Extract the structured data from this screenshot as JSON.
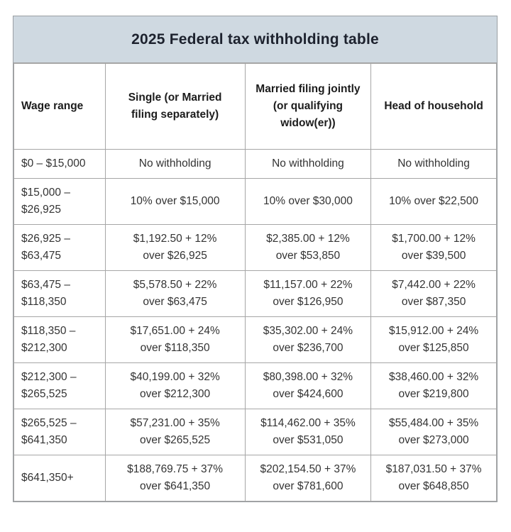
{
  "page": {
    "background": "#ffffff"
  },
  "style": {
    "title_band_bg": "#cfd9e1",
    "border_color": "#a6a6a6",
    "title_text_color": "#1d222e",
    "header_text_color": "#1c1c1c",
    "cell_text_color": "#333333"
  },
  "chart_data": {
    "type": "table",
    "title": "2025 Federal tax withholding table",
    "columns": [
      [
        "Wage range"
      ],
      [
        "Single (or Married",
        "filing separately)"
      ],
      [
        "Married filing jointly",
        "(or qualifying",
        "widow(er))"
      ],
      [
        "Head of household"
      ]
    ],
    "rows": [
      [
        [
          "$0 – $15,000"
        ],
        [
          "No withholding"
        ],
        [
          "No withholding"
        ],
        [
          "No withholding"
        ]
      ],
      [
        [
          "$15,000 –",
          "$26,925"
        ],
        [
          "10% over $15,000"
        ],
        [
          "10% over $30,000"
        ],
        [
          "10% over $22,500"
        ]
      ],
      [
        [
          "$26,925 –",
          "$63,475"
        ],
        [
          "$1,192.50 + 12%",
          "over $26,925"
        ],
        [
          "$2,385.00 + 12%",
          "over $53,850"
        ],
        [
          "$1,700.00 + 12%",
          "over $39,500"
        ]
      ],
      [
        [
          "$63,475 –",
          "$118,350"
        ],
        [
          "$5,578.50 + 22%",
          "over $63,475"
        ],
        [
          "$11,157.00 + 22%",
          "over $126,950"
        ],
        [
          "$7,442.00 + 22%",
          "over $87,350"
        ]
      ],
      [
        [
          "$118,350 –",
          "$212,300"
        ],
        [
          "$17,651.00 + 24%",
          "over $118,350"
        ],
        [
          "$35,302.00 + 24%",
          "over $236,700"
        ],
        [
          "$15,912.00 + 24%",
          "over $125,850"
        ]
      ],
      [
        [
          "$212,300 –",
          "$265,525"
        ],
        [
          "$40,199.00 + 32%",
          "over $212,300"
        ],
        [
          "$80,398.00 + 32%",
          "over $424,600"
        ],
        [
          "$38,460.00 + 32%",
          "over $219,800"
        ]
      ],
      [
        [
          "$265,525 –",
          "$641,350"
        ],
        [
          "$57,231.00 + 35%",
          "over $265,525"
        ],
        [
          "$114,462.00 + 35%",
          "over $531,050"
        ],
        [
          "$55,484.00 + 35%",
          "over $273,000"
        ]
      ],
      [
        [
          "$641,350+"
        ],
        [
          "$188,769.75 + 37%",
          "over $641,350"
        ],
        [
          "$202,154.50 + 37%",
          "over $781,600"
        ],
        [
          "$187,031.50 + 37%",
          "over $648,850"
        ]
      ]
    ]
  }
}
